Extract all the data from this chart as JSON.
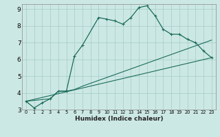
{
  "xlabel": "Humidex (Indice chaleur)",
  "background_color": "#cce8e4",
  "grid_color": "#aacfca",
  "line_color": "#1a6b5a",
  "xlim": [
    -0.5,
    23.5
  ],
  "ylim": [
    3,
    9.3
  ],
  "yticks": [
    3,
    4,
    5,
    6,
    7,
    8,
    9
  ],
  "xticks": [
    0,
    1,
    2,
    3,
    4,
    5,
    6,
    7,
    8,
    9,
    10,
    11,
    12,
    13,
    14,
    15,
    16,
    17,
    18,
    19,
    20,
    21,
    22,
    23
  ],
  "series1_x": [
    0,
    1,
    2,
    3,
    4,
    5,
    6,
    7,
    9,
    10,
    11,
    12,
    13,
    14,
    15,
    16,
    17,
    18,
    19,
    20,
    21,
    22,
    23
  ],
  "series1_y": [
    3.5,
    3.1,
    3.4,
    3.65,
    4.1,
    4.1,
    6.2,
    6.85,
    8.5,
    8.4,
    8.3,
    8.1,
    8.5,
    9.1,
    9.2,
    8.6,
    7.8,
    7.5,
    7.5,
    7.2,
    7.0,
    6.5,
    6.1
  ],
  "series2_x": [
    0,
    3,
    4,
    5,
    6,
    7,
    23
  ],
  "series2_y": [
    3.5,
    3.65,
    4.1,
    4.1,
    4.2,
    4.4,
    7.15
  ],
  "series3_x": [
    0,
    23
  ],
  "series3_y": [
    3.5,
    6.1
  ]
}
